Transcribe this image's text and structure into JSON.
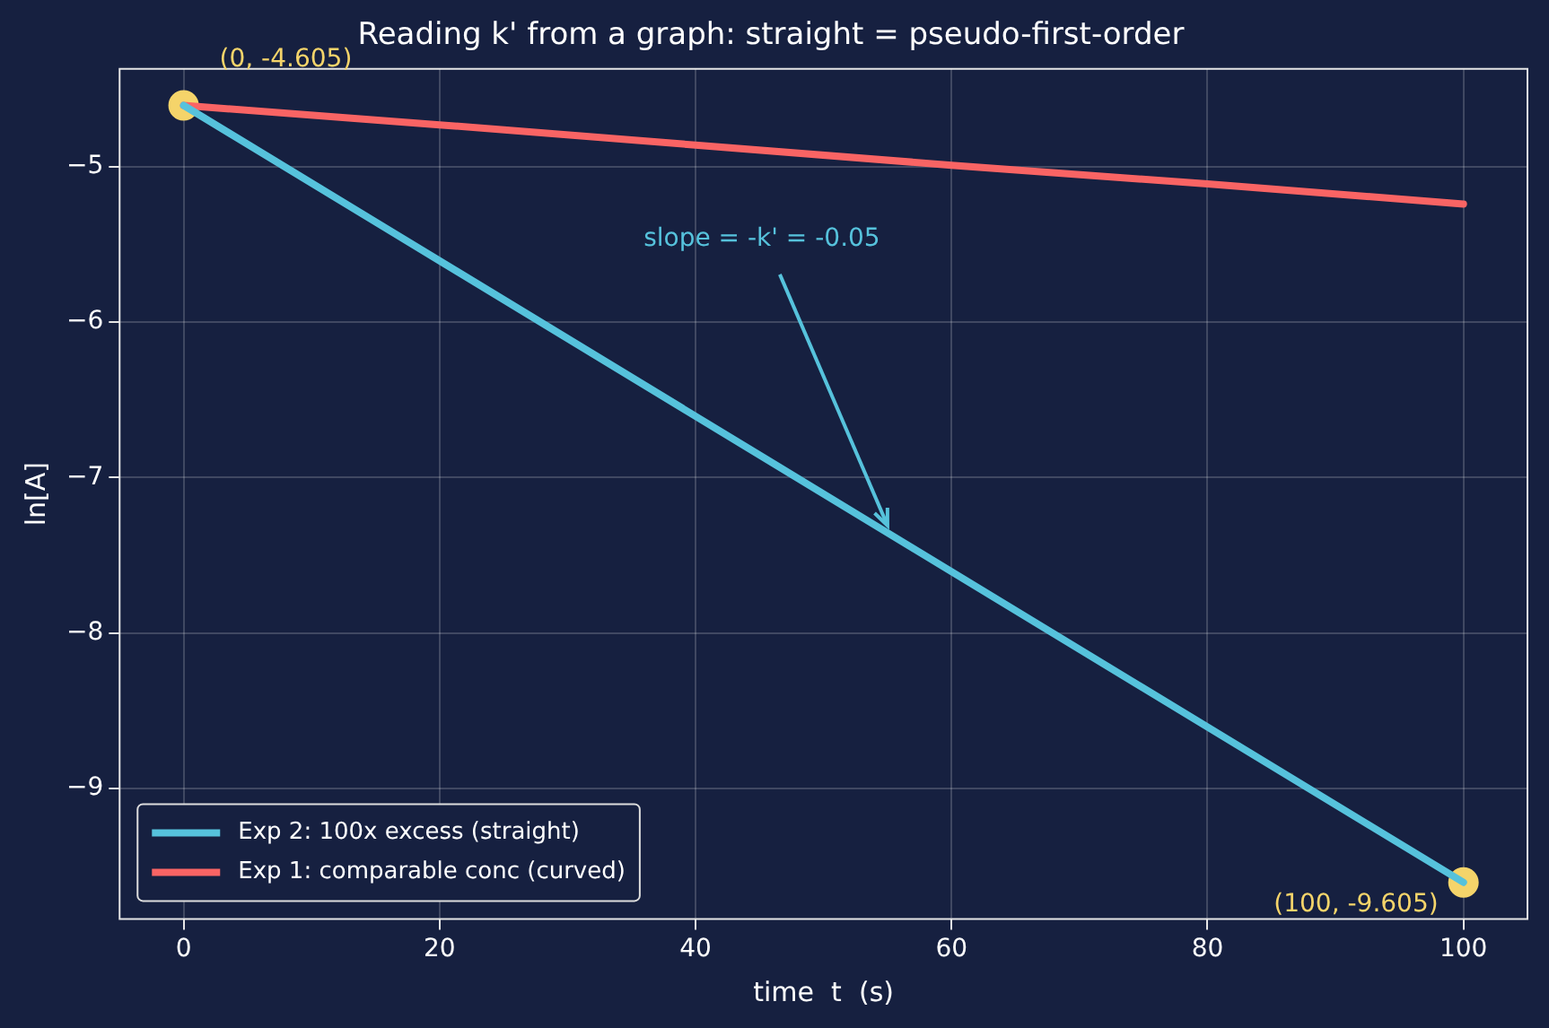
{
  "chart_data": {
    "type": "line",
    "title": "Reading k' from a graph: straight = pseudo-first-order",
    "xlabel": "time  t  (s)",
    "ylabel": "ln[A]",
    "xlim": [
      -5,
      105
    ],
    "xticks": [
      0,
      20,
      40,
      60,
      80,
      100
    ],
    "ylim": [
      -9.84,
      -4.37
    ],
    "yticks": [
      {
        "value": -9,
        "label": "−9"
      },
      {
        "value": -8,
        "label": "−8"
      },
      {
        "value": -7,
        "label": "−7"
      },
      {
        "value": -6,
        "label": "−6"
      },
      {
        "value": -5,
        "label": "−5"
      }
    ],
    "grid": true,
    "legend": "bottom left",
    "marker": "none",
    "line_style": "solid",
    "series": [
      {
        "name": "Exp 2: 100x excess (straight)",
        "color": "#56c2dc",
        "x": [
          0,
          100
        ],
        "values": [
          -4.605,
          -9.605
        ]
      },
      {
        "name": "Exp 1: comparable conc (curved)",
        "color": "#f96464",
        "x": [
          0,
          20,
          40,
          60,
          80,
          100
        ],
        "values": [
          -4.605,
          -4.73,
          -4.86,
          -4.99,
          -5.11,
          -5.24
        ]
      },
      {
        "type": "scatter",
        "marker": "circle",
        "color": "#f5d46a",
        "x": [
          0,
          100
        ],
        "values": [
          -4.605,
          -9.605
        ]
      }
    ],
    "annotations": [
      {
        "text": "(0, -4.605)",
        "x": 0,
        "y": -4.605
      },
      {
        "text": "(100, -9.605)",
        "x": 100,
        "y": -9.605
      },
      {
        "text": "slope = -k' = -0.05",
        "x": 55,
        "y": -7.355
      }
    ]
  }
}
